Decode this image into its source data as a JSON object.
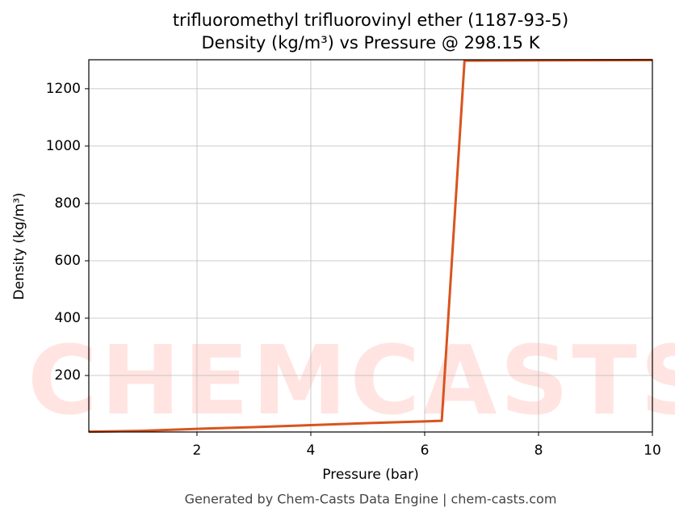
{
  "chart_data": {
    "type": "line",
    "title": "trifluoromethyl trifluorovinyl ether (1187-93-5)",
    "subtitle": "Density (kg/m³) vs Pressure @ 298.15 K",
    "x_label": "Pressure (bar)",
    "y_label": "Density (kg/m³)",
    "watermark": "CHEMCASTS",
    "footer": "Generated by Chem-Casts Data Engine | chem-casts.com",
    "x": [
      0.1,
      1,
      2,
      3,
      4,
      5,
      6,
      6.3,
      6.7,
      8,
      10
    ],
    "series": [
      {
        "name": "Density",
        "color": "#d9541e",
        "values": [
          4,
          7,
          14,
          20,
          27,
          34,
          40,
          42,
          1298,
          1299,
          1300
        ]
      }
    ],
    "xlim": [
      0.1,
      10
    ],
    "xticks": [
      2,
      4,
      6,
      8,
      10
    ],
    "ylim": [
      3,
      1301
    ],
    "yticks": [
      200,
      400,
      600,
      800,
      1000,
      1200
    ],
    "grid": true
  }
}
